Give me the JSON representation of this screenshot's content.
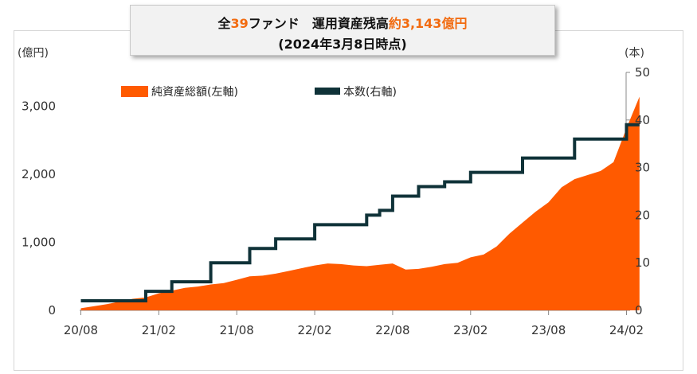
{
  "title": {
    "line1_prefix": "全",
    "line1_count": "39",
    "line1_mid": "ファンド　運用資産残高",
    "line1_amount": "約3,143億円",
    "line2": "(2024年3月8日時点)"
  },
  "colors": {
    "area": "#ff5a00",
    "step_line": "#0f3238",
    "highlight": "#f26b10",
    "axis": "#888888",
    "text": "#333333"
  },
  "chart_data": {
    "type": "area",
    "left_axis": {
      "unit_label": "(億円)",
      "ylim": [
        0,
        3500
      ],
      "ticks": [
        "0",
        "1,000",
        "2,000",
        "3,000"
      ],
      "tick_values": [
        0,
        1000,
        2000,
        3000
      ]
    },
    "right_axis": {
      "unit_label": "(本)",
      "ylim": [
        0,
        50
      ],
      "ticks": [
        "0",
        "10",
        "20",
        "30",
        "40",
        "50"
      ],
      "tick_values": [
        0,
        10,
        20,
        30,
        40,
        50
      ]
    },
    "x_axis": {
      "range_months": [
        "2020-08",
        "2024-03"
      ],
      "ticks": [
        "20/08",
        "21/02",
        "21/08",
        "22/02",
        "22/08",
        "23/02",
        "23/08",
        "24/02"
      ],
      "tick_months": [
        "2020-08",
        "2021-02",
        "2021-08",
        "2022-02",
        "2022-08",
        "2023-02",
        "2023-08",
        "2024-02"
      ]
    },
    "legend": {
      "position": "top-left",
      "entries": [
        "純資産総額(左軸)",
        "本数(右軸)"
      ]
    },
    "series": [
      {
        "name": "純資産総額(左軸)",
        "axis": "left",
        "style": "area",
        "points": [
          [
            "2020-08",
            30
          ],
          [
            "2020-10",
            90
          ],
          [
            "2020-12",
            170
          ],
          [
            "2021-01",
            190
          ],
          [
            "2021-02",
            250
          ],
          [
            "2021-03",
            290
          ],
          [
            "2021-04",
            330
          ],
          [
            "2021-05",
            350
          ],
          [
            "2021-06",
            380
          ],
          [
            "2021-07",
            400
          ],
          [
            "2021-08",
            450
          ],
          [
            "2021-09",
            500
          ],
          [
            "2021-10",
            510
          ],
          [
            "2021-11",
            540
          ],
          [
            "2021-12",
            580
          ],
          [
            "2022-01",
            620
          ],
          [
            "2022-02",
            660
          ],
          [
            "2022-03",
            690
          ],
          [
            "2022-04",
            680
          ],
          [
            "2022-05",
            660
          ],
          [
            "2022-06",
            650
          ],
          [
            "2022-07",
            670
          ],
          [
            "2022-08",
            690
          ],
          [
            "2022-09",
            600
          ],
          [
            "2022-10",
            610
          ],
          [
            "2022-11",
            640
          ],
          [
            "2022-12",
            680
          ],
          [
            "2023-01",
            700
          ],
          [
            "2023-02",
            780
          ],
          [
            "2023-03",
            820
          ],
          [
            "2023-04",
            940
          ],
          [
            "2023-05",
            1130
          ],
          [
            "2023-06",
            1290
          ],
          [
            "2023-07",
            1450
          ],
          [
            "2023-08",
            1590
          ],
          [
            "2023-09",
            1810
          ],
          [
            "2023-10",
            1930
          ],
          [
            "2023-11",
            1990
          ],
          [
            "2023-12",
            2050
          ],
          [
            "2024-01",
            2180
          ],
          [
            "2024-02",
            2680
          ],
          [
            "2024-03",
            3143
          ]
        ]
      },
      {
        "name": "本数(右軸)",
        "axis": "right",
        "style": "step",
        "points": [
          [
            "2020-08",
            2
          ],
          [
            "2021-01",
            4
          ],
          [
            "2021-03",
            6
          ],
          [
            "2021-06",
            10
          ],
          [
            "2021-09",
            13
          ],
          [
            "2021-11",
            15
          ],
          [
            "2022-02",
            18
          ],
          [
            "2022-06",
            20
          ],
          [
            "2022-07",
            21
          ],
          [
            "2022-08",
            24
          ],
          [
            "2022-10",
            26
          ],
          [
            "2022-12",
            27
          ],
          [
            "2023-02",
            29
          ],
          [
            "2023-06",
            32
          ],
          [
            "2023-10",
            36
          ],
          [
            "2024-02",
            39
          ],
          [
            "2024-03",
            39
          ]
        ]
      }
    ]
  }
}
